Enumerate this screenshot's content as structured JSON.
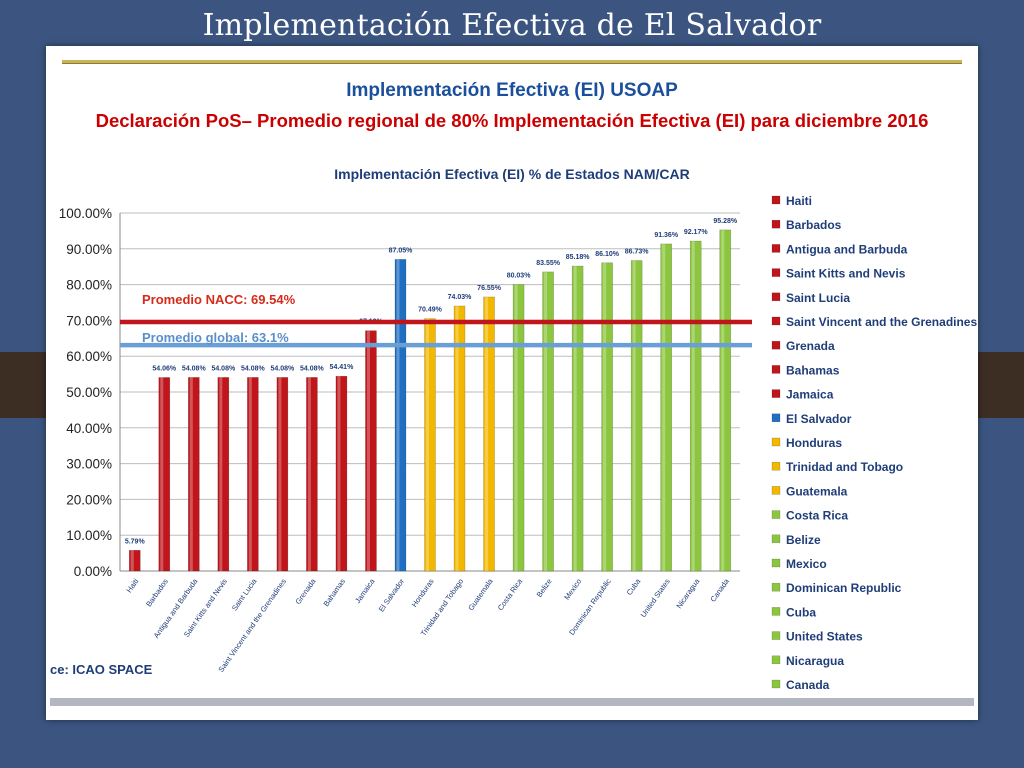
{
  "slide": {
    "title": "Implementación Efectiva de El Salvador"
  },
  "source": "ce: ICAO SPACE",
  "chart_data": {
    "type": "bar",
    "title": "Implementación Efectiva (EI) USOAP",
    "subtitle": "Declaración PoS– Promedio regional de 80% Implementación Efectiva (EI) para diciembre 2016",
    "plot_title": "Implementación Efectiva (EI) % de Estados NAM/CAR",
    "categories": [
      "Haiti",
      "Barbados",
      "Antigua and Barbuda",
      "Saint Kitts and Nevis",
      "Saint Lucia",
      "Saint Vincent and the Grenadines",
      "Grenada",
      "Bahamas",
      "Jamaica",
      "El Salvador",
      "Honduras",
      "Trinidad and Tobago",
      "Guatemala",
      "Costa Rica",
      "Belize",
      "Mexico",
      "Dominican Republic",
      "Cuba",
      "United States",
      "Nicaragua",
      "Canada"
    ],
    "values": [
      5.79,
      54.06,
      54.08,
      54.08,
      54.08,
      54.08,
      54.08,
      54.41,
      67.13,
      87.05,
      70.49,
      74.03,
      76.55,
      80.03,
      83.55,
      85.18,
      86.1,
      86.73,
      91.36,
      92.17,
      95.28
    ],
    "value_labels": [
      "5.79%",
      "54.06%",
      "54.08%",
      "54.08%",
      "54.08%",
      "54.08%",
      "54.08%",
      "54.41%",
      "67.13%",
      "87.05%",
      "70.49%",
      "74.03%",
      "76.55%",
      "80.03%",
      "83.55%",
      "85.18%",
      "86.10%",
      "86.73%",
      "91.36%",
      "92.17%",
      "95.28%"
    ],
    "bar_colors": [
      "#c0151b",
      "#c0151b",
      "#c0151b",
      "#c0151b",
      "#c0151b",
      "#c0151b",
      "#c0151b",
      "#c0151b",
      "#c0151b",
      "#1f6fc2",
      "#f2b800",
      "#f2b800",
      "#f2b800",
      "#8cc63f",
      "#8cc63f",
      "#8cc63f",
      "#8cc63f",
      "#8cc63f",
      "#8cc63f",
      "#8cc63f",
      "#8cc63f"
    ],
    "y_ticks": [
      "0.00%",
      "10.00%",
      "20.00%",
      "30.00%",
      "40.00%",
      "50.00%",
      "60.00%",
      "70.00%",
      "80.00%",
      "90.00%",
      "100.00%"
    ],
    "ylim": [
      0,
      100
    ],
    "grid": true,
    "legend_position": "right",
    "reference_lines": [
      {
        "label": "Promedio NACC: 69.54%",
        "value": 69.54,
        "color": "#c0151b",
        "label_color": "#d62a1a"
      },
      {
        "label": "Promedio global: 63.1%",
        "value": 63.1,
        "color": "#6a9fd6",
        "label_color": "#5b8fca"
      }
    ]
  }
}
